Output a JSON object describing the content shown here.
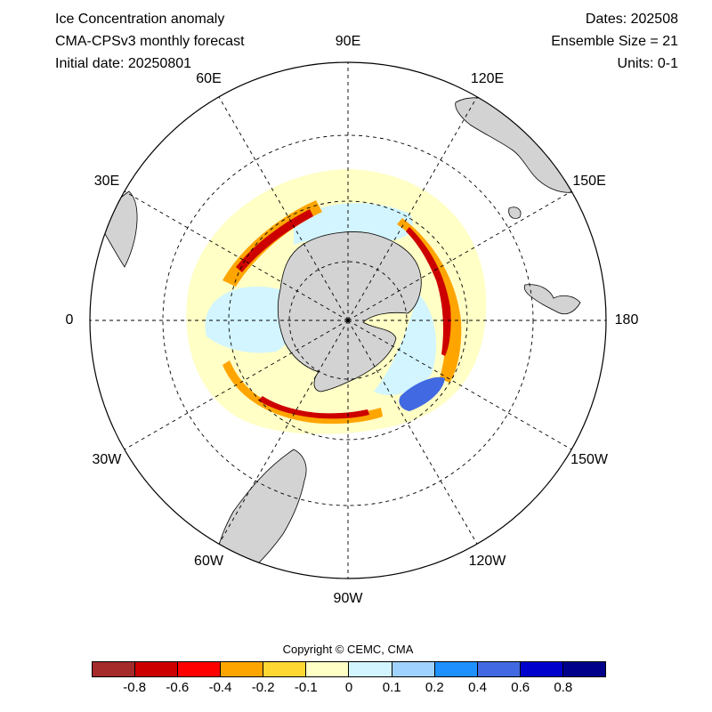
{
  "header": {
    "title": "Ice Concentration anomaly",
    "model": "CMA-CPSv3 monthly forecast",
    "initial_date": "Initial date: 20250801",
    "dates": "Dates: 202508",
    "ensemble": "Ensemble Size = 21",
    "units": "Units: 0-1"
  },
  "map": {
    "projection": "south polar stereographic",
    "longitude_labels": [
      {
        "key": "90E",
        "text": "90E",
        "angle": 90
      },
      {
        "key": "120E",
        "text": "120E",
        "angle": 60
      },
      {
        "key": "150E",
        "text": "150E",
        "angle": 30
      },
      {
        "key": "180",
        "text": "180",
        "angle": 0
      },
      {
        "key": "150W",
        "text": "150W",
        "angle": -30
      },
      {
        "key": "120W",
        "text": "120W",
        "angle": -60
      },
      {
        "key": "90W",
        "text": "90W",
        "angle": -90
      },
      {
        "key": "60W",
        "text": "60W",
        "angle": -120
      },
      {
        "key": "30W",
        "text": "30W",
        "angle": -150
      },
      {
        "key": "0",
        "text": "0",
        "angle": 180
      },
      {
        "key": "30E",
        "text": "30E",
        "angle": 150
      },
      {
        "key": "60E",
        "text": "60E",
        "angle": 120
      }
    ],
    "colors": {
      "land": "#d3d3d3",
      "ocean": "#ffffff",
      "grid": "#000000"
    }
  },
  "footer": {
    "copyright": "Copyright © CEMC, CMA"
  },
  "colorbar": {
    "colors": [
      "#a52a2a",
      "#cd0000",
      "#ff0000",
      "#ffa500",
      "#ffd733",
      "#ffffc6",
      "#d2f5ff",
      "#a0d2ff",
      "#1e90ff",
      "#4169e1",
      "#0000cd",
      "#00008b"
    ],
    "ticks": [
      "-0.8",
      "-0.6",
      "-0.4",
      "-0.2",
      "-0.1",
      "0",
      "0.1",
      "0.2",
      "0.4",
      "0.6",
      "0.8"
    ]
  }
}
